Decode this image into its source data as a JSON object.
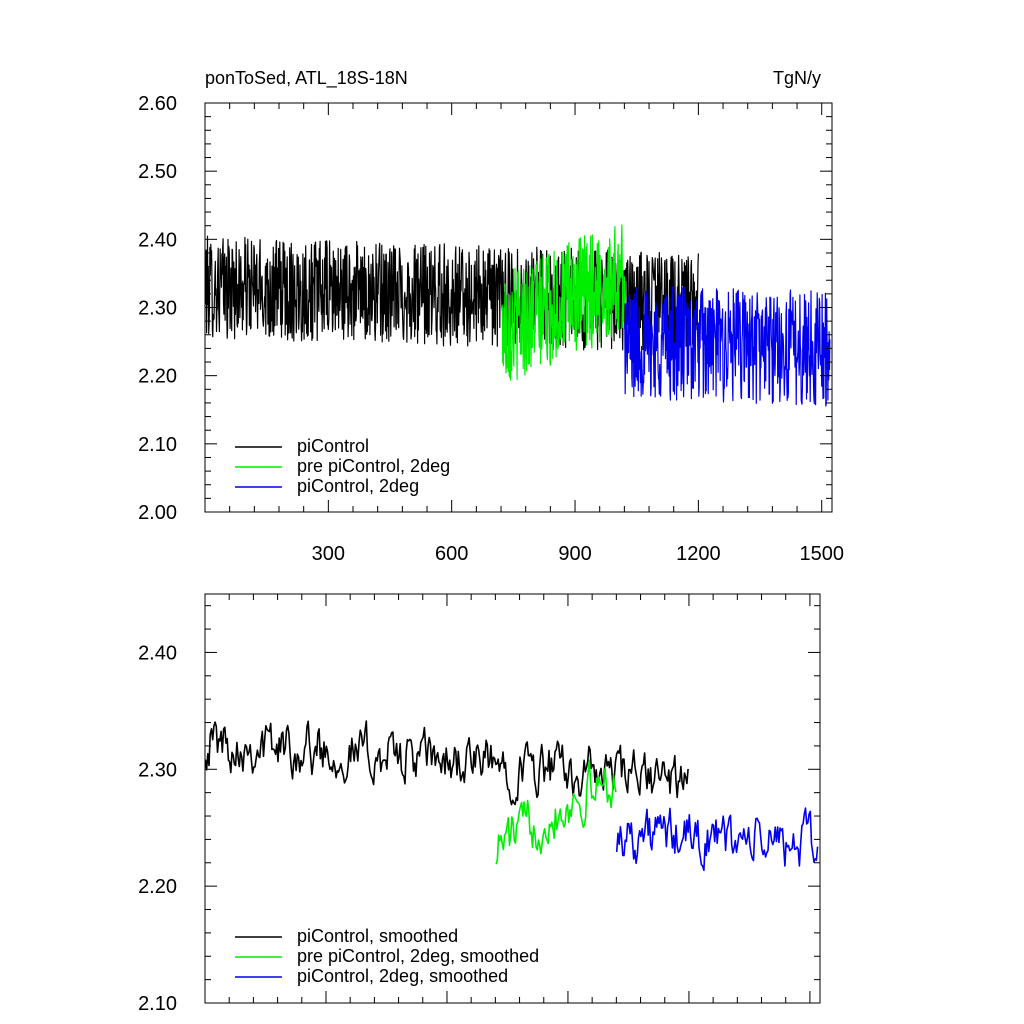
{
  "chart_data": [
    {
      "type": "line",
      "title_left": "ponToSed, ATL_18S-18N",
      "title_right": "TgN/y",
      "xlim": [
        0,
        1525
      ],
      "ylim": [
        2.0,
        2.6
      ],
      "x_ticks": [
        300,
        600,
        900,
        1200,
        1500
      ],
      "x_tick_labels": [
        "300",
        "600",
        "900",
        "1200",
        "1500"
      ],
      "y_ticks": [
        2.0,
        2.1,
        2.2,
        2.3,
        2.4,
        2.5,
        2.6
      ],
      "y_tick_labels": [
        "2.00",
        "2.10",
        "2.20",
        "2.30",
        "2.40",
        "2.50",
        "2.60"
      ],
      "legend_position": "bottom-left",
      "series": [
        {
          "name": "piControl",
          "color": "#000000",
          "x_start": 1,
          "x_end": 1200,
          "step": 1,
          "mean": 2.33,
          "noise_amplitude": 0.075,
          "trend_per_100": -0.002
        },
        {
          "name": "pre piControl, 2deg",
          "color": "#00ee00",
          "x_start": 722,
          "x_end": 1021,
          "step": 1,
          "mean": 2.27,
          "noise_amplitude": 0.085,
          "trend_per_100": 0.025
        },
        {
          "name": "piControl, 2deg",
          "color": "#0000ee",
          "x_start": 1021,
          "x_end": 1520,
          "step": 1,
          "mean": 2.25,
          "noise_amplitude": 0.085,
          "trend_per_100": -0.002
        }
      ]
    },
    {
      "type": "line",
      "xlim": [
        0,
        1525
      ],
      "ylim": [
        2.1,
        2.45
      ],
      "x_ticks": [
        300,
        600,
        900,
        1200,
        1500
      ],
      "y_ticks": [
        2.1,
        2.2,
        2.3,
        2.4
      ],
      "y_tick_labels": [
        "2.10",
        "2.20",
        "2.30",
        "2.40"
      ],
      "legend_position": "bottom-left",
      "series": [
        {
          "name": "piControl, smoothed",
          "color": "#000000",
          "x_start": 1,
          "x_end": 1200,
          "step": 3,
          "mean": 2.325,
          "noise_amplitude": 0.028,
          "trend_per_100": -0.003
        },
        {
          "name": "pre piControl, 2deg, smoothed",
          "color": "#00ee00",
          "x_start": 722,
          "x_end": 1021,
          "step": 3,
          "mean": 2.235,
          "noise_amplitude": 0.028,
          "trend_per_100": 0.02
        },
        {
          "name": "piControl, 2deg, smoothed",
          "color": "#0000ee",
          "x_start": 1021,
          "x_end": 1520,
          "step": 3,
          "mean": 2.245,
          "noise_amplitude": 0.028,
          "trend_per_100": -0.002
        }
      ]
    }
  ]
}
